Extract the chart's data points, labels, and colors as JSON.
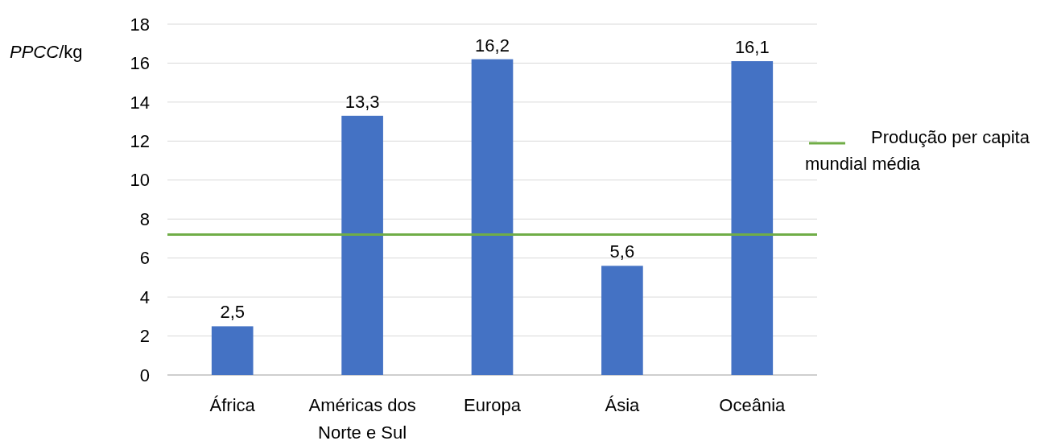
{
  "chart_data": {
    "type": "bar",
    "ylabel": "PPCC/kg",
    "categories": [
      "África",
      "Américas dos Norte e Sul",
      "Europa",
      "Ásia",
      "Oceânia"
    ],
    "values": [
      2.5,
      13.3,
      16.2,
      5.6,
      16.1
    ],
    "color": "#4472c4",
    "value_labels": [
      "2,5",
      "13,3",
      "16,2",
      "5,6",
      "16,1"
    ],
    "ylim": [
      0,
      18
    ],
    "yticks": [
      0,
      2,
      4,
      6,
      8,
      10,
      12,
      14,
      16,
      18
    ],
    "grid": "y",
    "legend": "right",
    "ref_lines": [
      {
        "axis": "y",
        "value": 7.2,
        "label": "Produção per capita mundial média",
        "color": "#70ad47"
      }
    ]
  }
}
